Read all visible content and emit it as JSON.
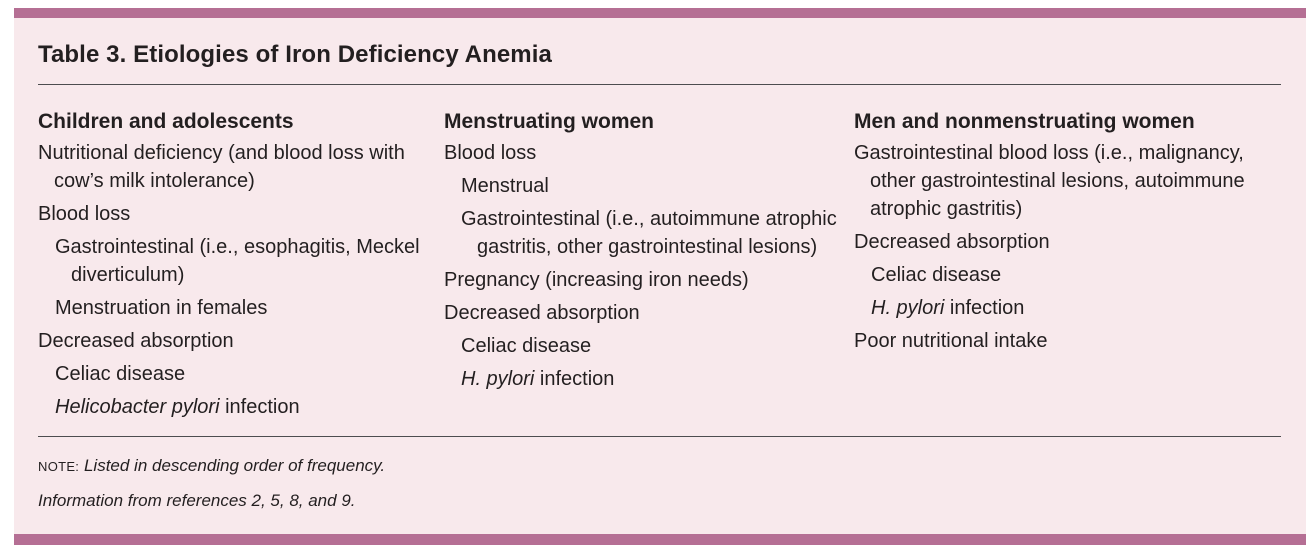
{
  "table": {
    "title": "Table 3. Etiologies of Iron Deficiency Anemia",
    "columns": [
      {
        "heading": "Children and adolescents",
        "items": [
          {
            "level": 0,
            "text": "Nutritional deficiency (and blood loss with cow’s milk intolerance)"
          },
          {
            "level": 0,
            "text": "Blood loss"
          },
          {
            "level": 1,
            "text": "Gastrointestinal (i.e., esophagitis, Meckel diverticulum)"
          },
          {
            "level": 1,
            "text": "Menstruation in females"
          },
          {
            "level": 0,
            "text": "Decreased absorption"
          },
          {
            "level": 1,
            "text": "Celiac disease"
          },
          {
            "level": 1,
            "italic": "Helicobacter pylori",
            "text": " infection"
          }
        ]
      },
      {
        "heading": "Menstruating women",
        "items": [
          {
            "level": 0,
            "text": "Blood loss"
          },
          {
            "level": 1,
            "text": "Menstrual"
          },
          {
            "level": 1,
            "text": "Gastrointestinal (i.e., autoimmune atrophic gastritis, other gastrointestinal lesions)"
          },
          {
            "level": 0,
            "text": "Pregnancy (increasing iron needs)"
          },
          {
            "level": 0,
            "text": "Decreased absorption"
          },
          {
            "level": 1,
            "text": "Celiac disease"
          },
          {
            "level": 1,
            "italic": "H. pylori",
            "text": " infection"
          }
        ]
      },
      {
        "heading": "Men and nonmenstruating women",
        "items": [
          {
            "level": 0,
            "text": "Gastrointestinal blood loss (i.e., malignancy, other gastrointestinal lesions, autoimmune atrophic gastritis)"
          },
          {
            "level": 0,
            "text": "Decreased absorption"
          },
          {
            "level": 1,
            "text": "Celiac disease"
          },
          {
            "level": 1,
            "italic": "H. pylori",
            "text": " infection"
          },
          {
            "level": 0,
            "text": "Poor nutritional intake"
          }
        ]
      }
    ],
    "note_label": "NOTE:",
    "note_text": " Listed in descending order of frequency.",
    "source": "Information from references 2, 5, 8, and 9."
  },
  "colors": {
    "accent_bar": "#b56f94",
    "background": "#f8e9ec",
    "text": "#231f20"
  }
}
